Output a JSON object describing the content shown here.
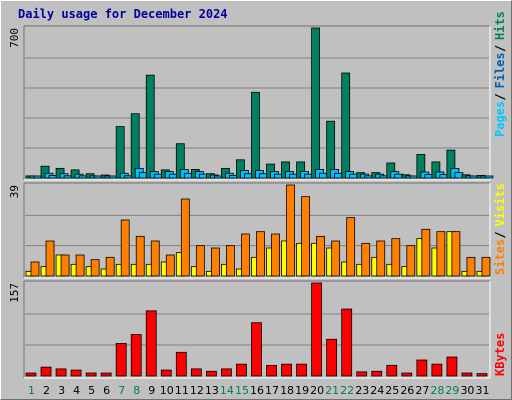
{
  "title": "Daily usage for December 2024",
  "chart_data": [
    {
      "type": "bar",
      "panel": "top",
      "ymax_label": "700",
      "ymax": 700,
      "categories": [
        "1",
        "2",
        "3",
        "4",
        "5",
        "6",
        "7",
        "8",
        "9",
        "10",
        "11",
        "12",
        "13",
        "14",
        "15",
        "16",
        "17",
        "18",
        "19",
        "20",
        "21",
        "22",
        "23",
        "24",
        "25",
        "26",
        "27",
        "28",
        "29",
        "30",
        "31"
      ],
      "weekend_days": [
        "1",
        "7",
        "8",
        "14",
        "15",
        "21",
        "22",
        "28",
        "29"
      ],
      "series": [
        {
          "name": "Hits",
          "color": "#008060",
          "values": [
            10,
            55,
            45,
            38,
            20,
            14,
            240,
            300,
            480,
            38,
            160,
            40,
            20,
            45,
            85,
            400,
            65,
            75,
            75,
            700,
            265,
            490,
            25,
            25,
            70,
            15,
            110,
            75,
            130,
            15,
            12
          ]
        },
        {
          "name": "Files",
          "color": "#00bfff",
          "values": [
            5,
            22,
            20,
            18,
            10,
            8,
            22,
            45,
            30,
            30,
            40,
            30,
            14,
            22,
            35,
            35,
            30,
            30,
            30,
            40,
            40,
            30,
            18,
            18,
            30,
            10,
            28,
            28,
            45,
            10,
            8
          ]
        },
        {
          "name": "Pages",
          "color": "#00c0ff",
          "values": [
            3,
            12,
            10,
            10,
            6,
            4,
            10,
            25,
            18,
            18,
            22,
            18,
            8,
            12,
            20,
            20,
            18,
            18,
            18,
            22,
            22,
            18,
            10,
            10,
            18,
            6,
            16,
            16,
            25,
            6,
            5
          ]
        }
      ],
      "legend": [
        {
          "text": "Pages",
          "color": "#00c8ff"
        },
        {
          "text": "Files",
          "color": "#0060b0"
        },
        {
          "text": "Hits",
          "color": "#008060"
        }
      ]
    },
    {
      "type": "bar",
      "panel": "middle",
      "ymax_label": "39",
      "ymax": 39,
      "series": [
        {
          "name": "Visits",
          "color": "#ffff00",
          "values": [
            2,
            4,
            9,
            5,
            4,
            3,
            5,
            5,
            5,
            6,
            10,
            4,
            2,
            5,
            3,
            8,
            12,
            15,
            14,
            14,
            12,
            6,
            5,
            8,
            5,
            4,
            16,
            12,
            19,
            2,
            2
          ]
        },
        {
          "name": "Sites",
          "color": "#ff8000",
          "values": [
            6,
            15,
            9,
            9,
            7,
            8,
            24,
            17,
            15,
            9,
            33,
            13,
            12,
            13,
            18,
            19,
            18,
            39,
            34,
            17,
            15,
            25,
            14,
            15,
            16,
            13,
            20,
            19,
            19,
            8,
            8
          ]
        }
      ],
      "legend": [
        {
          "text": "Sites",
          "color": "#ff8000"
        },
        {
          "text": "Visits",
          "color": "#ffff00"
        }
      ]
    },
    {
      "type": "bar",
      "panel": "bottom",
      "ymax_label": "157",
      "ymax": 157,
      "series": [
        {
          "name": "KBytes",
          "color": "#ff0000",
          "values": [
            5,
            15,
            12,
            10,
            5,
            5,
            55,
            70,
            110,
            10,
            40,
            12,
            8,
            12,
            20,
            90,
            18,
            20,
            20,
            157,
            62,
            113,
            7,
            8,
            18,
            5,
            27,
            20,
            32,
            5,
            4
          ]
        }
      ],
      "legend": [
        {
          "text": "KBytes",
          "color": "#ff0000"
        }
      ]
    }
  ]
}
